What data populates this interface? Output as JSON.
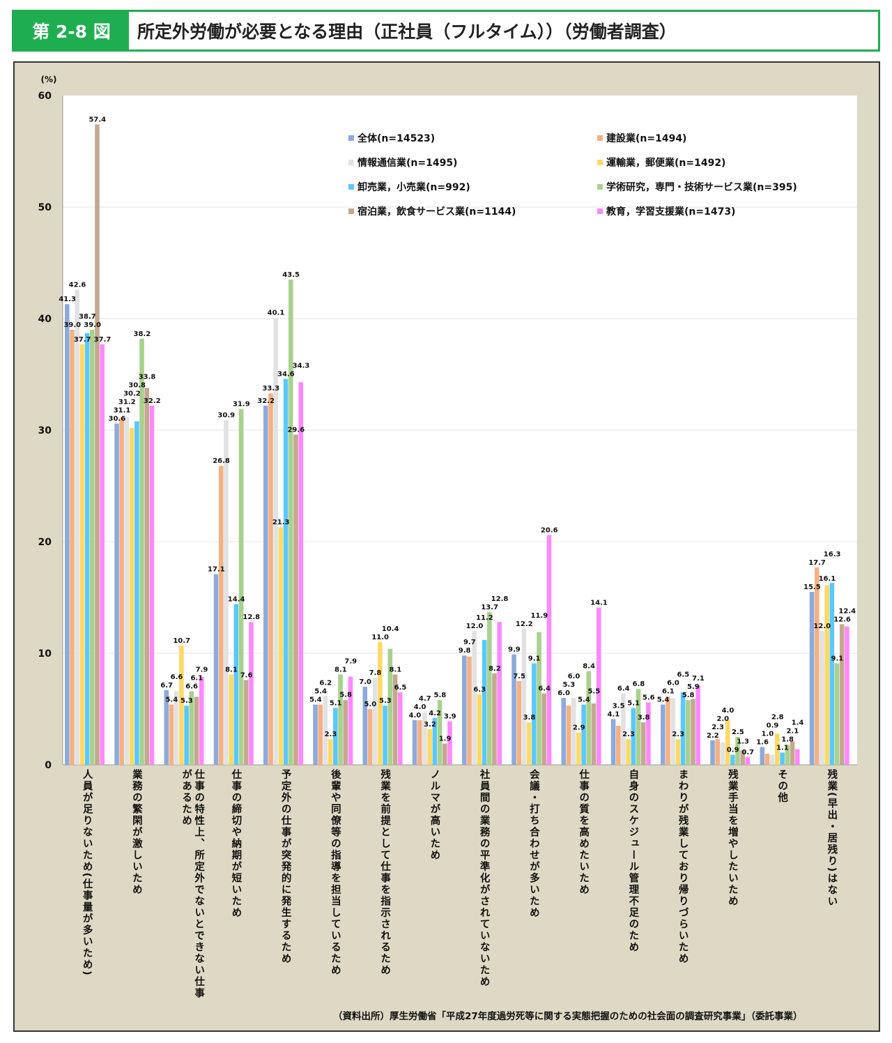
{
  "header": {
    "figure_no": "第 2-8 図",
    "title": "所定外労働が必要となる理由（正社員（フルタイム））（労働者調査）"
  },
  "source": "（資料出所）厚生労働省「平成27年度過労死等に関する実態把握のための社会面の調査研究事業」（委託事業）",
  "chart_data": {
    "type": "bar",
    "title": "所定外労働が必要となる理由（正社員（フルタイム））（労働者調査）",
    "ylabel": "(%)",
    "ylim": [
      0,
      60
    ],
    "yticks": [
      "0",
      "10",
      "20",
      "30",
      "40",
      "50",
      "60"
    ],
    "grid": true,
    "legend_placement": "top-right",
    "categories": [
      "人員が足りないため(仕事量が多いため)",
      "業務の繁閑が激しいため",
      "仕事の特性上、所定外でないとできない仕事があるため",
      "仕事の締切や納期が短いため",
      "予定外の仕事が突発的に発生するため",
      "後輩や同僚等の指導を担当しているため",
      "残業を前提として仕事を指示されるため",
      "ノルマが高いため",
      "社員間の業務の平準化がされていないため",
      "会議・打ち合わせが多いため",
      "仕事の質を高めたいため",
      "自身のスケジュール管理不足のため",
      "まわりが残業しており帰りづらいため",
      "残業手当を増やしたいため",
      "その他",
      "残業(早出・居残り)はない"
    ],
    "series": [
      {
        "name": "全体(n=14523)",
        "color": "#8eaadb",
        "values": [
          41.3,
          30.6,
          6.7,
          17.1,
          32.2,
          5.4,
          7.0,
          4.0,
          9.8,
          9.9,
          6.0,
          4.1,
          5.4,
          2.2,
          1.6,
          15.5
        ]
      },
      {
        "name": "建設業(n=1494)",
        "color": "#f4b183",
        "values": [
          39.0,
          31.1,
          5.4,
          26.8,
          33.3,
          5.4,
          5.0,
          4.0,
          9.7,
          7.5,
          5.3,
          3.5,
          6.1,
          2.3,
          1.0,
          17.7
        ]
      },
      {
        "name": "情報通信業(n=1495)",
        "color": "#e2e2e2",
        "values": [
          42.6,
          31.2,
          6.6,
          30.9,
          40.1,
          6.2,
          7.8,
          4.7,
          12.0,
          12.2,
          6.0,
          6.4,
          6.0,
          2.0,
          0.9,
          12.0
        ]
      },
      {
        "name": "運輸業，郵便業(n=1492)",
        "color": "#ffd966",
        "values": [
          37.7,
          30.2,
          10.7,
          8.1,
          21.3,
          2.3,
          11.0,
          3.2,
          6.3,
          3.8,
          2.9,
          2.3,
          2.3,
          4.0,
          2.8,
          16.1
        ]
      },
      {
        "name": "卸売業，小売業(n=992)",
        "color": "#5ac8fa",
        "values": [
          38.7,
          30.8,
          5.3,
          14.4,
          34.6,
          5.1,
          5.3,
          4.2,
          11.2,
          9.1,
          5.4,
          5.1,
          6.5,
          0.9,
          1.1,
          16.3
        ]
      },
      {
        "name": "学術研究，専門・技術サービス業(n=395)",
        "color": "#a9d18e",
        "values": [
          39.0,
          38.2,
          6.6,
          31.9,
          43.5,
          8.1,
          10.4,
          5.8,
          13.7,
          11.9,
          8.4,
          6.8,
          5.8,
          2.5,
          1.8,
          9.1
        ]
      },
      {
        "name": "宿泊業，飲食サービス業(n=1144)",
        "color": "#c4a88f",
        "values": [
          57.4,
          33.8,
          6.1,
          7.6,
          29.6,
          5.8,
          8.1,
          1.9,
          8.2,
          6.4,
          5.5,
          3.8,
          5.9,
          1.3,
          2.1,
          12.6
        ]
      },
      {
        "name": "教育，学習支援業(n=1473)",
        "color": "#ff88ff",
        "values": [
          37.7,
          32.2,
          7.9,
          12.8,
          34.3,
          7.9,
          6.5,
          3.9,
          12.8,
          20.6,
          14.1,
          5.6,
          7.1,
          0.7,
          1.4,
          12.4
        ]
      }
    ]
  }
}
